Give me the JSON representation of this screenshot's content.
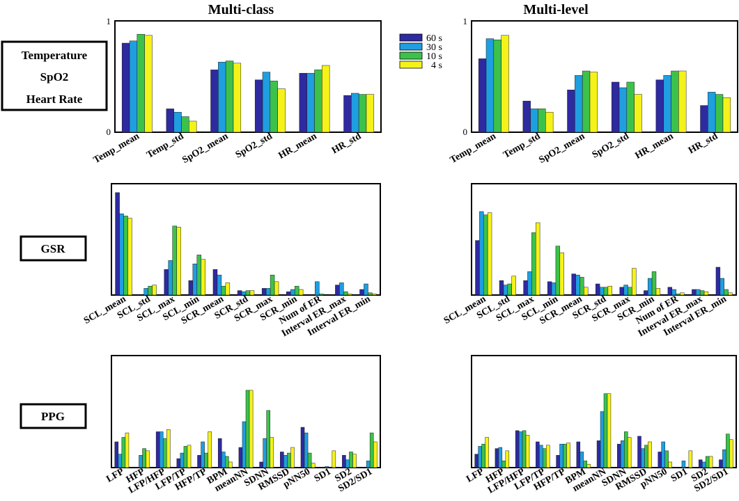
{
  "column_titles": [
    "Multi-class",
    "Multi-level"
  ],
  "row_labels": [
    [
      "Temperature",
      "SpO2",
      "Heart Rate"
    ],
    [
      "GSR"
    ],
    [
      "PPG"
    ]
  ],
  "y_tick_labels": [
    "0",
    "1"
  ],
  "colors": [
    "#2e2aa0",
    "#1f9ee0",
    "#3cc24b",
    "#f5f21a"
  ],
  "legend": [
    "60 s",
    "30 s",
    "10 s",
    "4 s"
  ],
  "chart_data": [
    {
      "id": "multi-class-temp-spo2-hr",
      "type": "bar",
      "title": "Multi-class",
      "ylim": [
        0,
        1
      ],
      "categories": [
        "Temp_mean",
        "Temp_std",
        "SpO2_mean",
        "SpO2_std",
        "HR_mean",
        "HR_std"
      ],
      "series": [
        {
          "name": "60 s",
          "values": [
            0.8,
            0.21,
            0.56,
            0.47,
            0.53,
            0.33
          ]
        },
        {
          "name": "30 s",
          "values": [
            0.82,
            0.18,
            0.63,
            0.54,
            0.53,
            0.35
          ]
        },
        {
          "name": "10 s",
          "values": [
            0.88,
            0.14,
            0.64,
            0.46,
            0.56,
            0.34
          ]
        },
        {
          "name": "4 s",
          "values": [
            0.87,
            0.1,
            0.62,
            0.39,
            0.6,
            0.34
          ]
        }
      ]
    },
    {
      "id": "multi-level-temp-spo2-hr",
      "type": "bar",
      "title": "Multi-level",
      "ylim": [
        0,
        1
      ],
      "categories": [
        "Temp_mean",
        "Temp_std",
        "SpO2_mean",
        "SpO2_std",
        "HR_mean",
        "HR_std"
      ],
      "series": [
        {
          "name": "60 s",
          "values": [
            0.66,
            0.28,
            0.38,
            0.45,
            0.47,
            0.24
          ]
        },
        {
          "name": "30 s",
          "values": [
            0.84,
            0.21,
            0.51,
            0.4,
            0.51,
            0.36
          ]
        },
        {
          "name": "10 s",
          "values": [
            0.83,
            0.21,
            0.55,
            0.45,
            0.55,
            0.34
          ]
        },
        {
          "name": "4 s",
          "values": [
            0.87,
            0.18,
            0.54,
            0.34,
            0.55,
            0.31
          ]
        }
      ]
    },
    {
      "id": "multi-class-gsr",
      "type": "bar",
      "ylim": [
        0,
        1
      ],
      "categories": [
        "SCL_mean",
        "SCL_std",
        "SCL_max",
        "SCL_min",
        "SCR_mean",
        "SCR_std",
        "SCR_max",
        "SCR_min",
        "Num of ER",
        "Interval ER_max",
        "Interval ER_min"
      ],
      "series": [
        {
          "name": "60 s",
          "values": [
            0.92,
            0.0,
            0.23,
            0.13,
            0.23,
            0.04,
            0.06,
            0.03,
            0.0,
            0.09,
            0.05
          ]
        },
        {
          "name": "30 s",
          "values": [
            0.73,
            0.06,
            0.31,
            0.28,
            0.18,
            0.03,
            0.06,
            0.05,
            0.12,
            0.11,
            0.1
          ]
        },
        {
          "name": "10 s",
          "values": [
            0.71,
            0.08,
            0.62,
            0.36,
            0.08,
            0.04,
            0.18,
            0.08,
            0.01,
            0.03,
            0.02
          ]
        },
        {
          "name": "4 s",
          "values": [
            0.69,
            0.09,
            0.61,
            0.32,
            0.11,
            0.04,
            0.12,
            0.05,
            0.0,
            0.01,
            0.01
          ]
        }
      ]
    },
    {
      "id": "multi-level-gsr",
      "type": "bar",
      "ylim": [
        0,
        1
      ],
      "categories": [
        "SCL_mean",
        "SCL_std",
        "SCL_max",
        "SCL_min",
        "SCR_mean",
        "SCR_std",
        "SCR_max",
        "SCR_min",
        "Num of ER",
        "Interval ER_max",
        "Interval ER_min"
      ],
      "series": [
        {
          "name": "60 s",
          "values": [
            0.49,
            0.13,
            0.13,
            0.12,
            0.19,
            0.1,
            0.07,
            0.04,
            0.07,
            0.05,
            0.25
          ]
        },
        {
          "name": "30 s",
          "values": [
            0.75,
            0.09,
            0.21,
            0.11,
            0.18,
            0.07,
            0.09,
            0.15,
            0.05,
            0.05,
            0.15
          ]
        },
        {
          "name": "10 s",
          "values": [
            0.72,
            0.1,
            0.56,
            0.44,
            0.16,
            0.07,
            0.07,
            0.21,
            0.01,
            0.04,
            0.05
          ]
        },
        {
          "name": "4 s",
          "values": [
            0.74,
            0.17,
            0.65,
            0.38,
            0.07,
            0.08,
            0.24,
            0.06,
            0.02,
            0.03,
            0.02
          ]
        }
      ]
    },
    {
      "id": "multi-class-ppg",
      "type": "bar",
      "ylim": [
        0,
        1
      ],
      "categories": [
        "LFP",
        "HFP",
        "LFP/HFP",
        "LFP/TP",
        "HFP/TP",
        "BPM",
        "meanNN",
        "SDNN",
        "RMSSD",
        "pNN50",
        "SD1",
        "SD2",
        "SD2/SD1"
      ],
      "series": [
        {
          "name": "60 s",
          "values": [
            0.23,
            0.0,
            0.32,
            0.08,
            0.11,
            0.26,
            0.18,
            0.05,
            0.14,
            0.36,
            0.0,
            0.11,
            0.0
          ]
        },
        {
          "name": "30 s",
          "values": [
            0.12,
            0.11,
            0.32,
            0.13,
            0.23,
            0.14,
            0.41,
            0.26,
            0.11,
            0.31,
            0.01,
            0.07,
            0.06
          ]
        },
        {
          "name": "10 s",
          "values": [
            0.27,
            0.17,
            0.26,
            0.19,
            0.13,
            0.1,
            0.69,
            0.51,
            0.13,
            0.13,
            0.0,
            0.14,
            0.31
          ]
        },
        {
          "name": "4 s",
          "values": [
            0.31,
            0.15,
            0.34,
            0.2,
            0.32,
            0.05,
            0.69,
            0.27,
            0.18,
            0.04,
            0.15,
            0.12,
            0.23
          ]
        }
      ]
    },
    {
      "id": "multi-level-ppg",
      "type": "bar",
      "ylim": [
        0,
        1
      ],
      "categories": [
        "LFP",
        "HFP",
        "LFP/HFP",
        "LFP/TP",
        "HFP/TP",
        "BPM",
        "meanNN",
        "SDNN",
        "RMSSD",
        "pNN50",
        "SD1",
        "SD2",
        "SD2/SD1"
      ],
      "series": [
        {
          "name": "60 s",
          "values": [
            0.12,
            0.17,
            0.33,
            0.23,
            0.11,
            0.23,
            0.24,
            0.21,
            0.28,
            0.14,
            0.0,
            0.07,
            0.07
          ]
        },
        {
          "name": "30 s",
          "values": [
            0.19,
            0.18,
            0.32,
            0.2,
            0.21,
            0.14,
            0.5,
            0.24,
            0.17,
            0.23,
            0.06,
            0.05,
            0.16
          ]
        },
        {
          "name": "10 s",
          "values": [
            0.21,
            0.06,
            0.33,
            0.17,
            0.21,
            0.06,
            0.66,
            0.32,
            0.2,
            0.15,
            0.0,
            0.1,
            0.3
          ]
        },
        {
          "name": "4 s",
          "values": [
            0.27,
            0.15,
            0.29,
            0.2,
            0.22,
            0.03,
            0.66,
            0.27,
            0.23,
            0.05,
            0.15,
            0.1,
            0.25
          ]
        }
      ]
    }
  ]
}
